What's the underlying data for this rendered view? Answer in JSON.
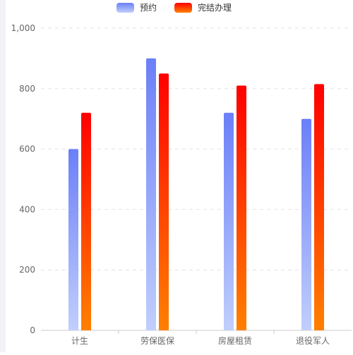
{
  "chart_data": {
    "type": "bar",
    "categories": [
      "计生",
      "劳保医保",
      "房屋租赁",
      "退役军人"
    ],
    "series": [
      {
        "name": "预约",
        "values": [
          600,
          900,
          720,
          700
        ],
        "color_top": "#6b7ff8",
        "color_bottom": "#c0cffc"
      },
      {
        "name": "完结办理",
        "values": [
          720,
          850,
          810,
          815
        ],
        "color_top": "#ff0000",
        "color_bottom": "#ff8000"
      }
    ],
    "ylim": [
      0,
      1000
    ],
    "yticks": [
      0,
      200,
      400,
      600,
      800,
      1000
    ],
    "ytick_labels": [
      "0",
      "200",
      "400",
      "600",
      "800",
      "1,000"
    ],
    "grid": true,
    "legend_position": "top-center",
    "title": "",
    "xlabel": "",
    "ylabel": ""
  }
}
